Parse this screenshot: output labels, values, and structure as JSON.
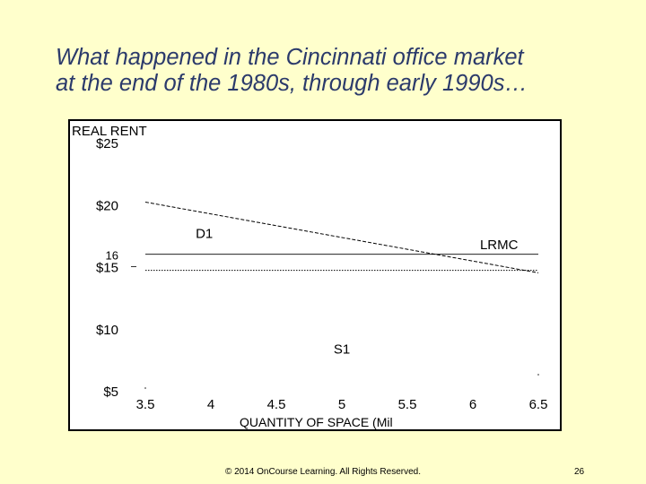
{
  "slide": {
    "title_line1": "What happened in the Cincinnati office market",
    "title_line2": "at the end of the 1980s, through early 1990s…",
    "footer": "© 2014 OnCourse Learning. All Rights Reserved.",
    "page_number": "26",
    "background_color": "#ffffcc",
    "title_color": "#2b3a6b"
  },
  "chart_data": {
    "type": "line",
    "ylabel": "REAL RENT",
    "xlabel": "QUANTITY OF SPACE (Mil",
    "xlim": [
      3.5,
      6.5
    ],
    "ylim": [
      5,
      25
    ],
    "x_ticks": [
      "3.5",
      "4",
      "4.5",
      "5",
      "5.5",
      "6",
      "6.5"
    ],
    "y_ticks": [
      "$25",
      "$20",
      "$15",
      "$10",
      "$5"
    ],
    "y_tick_values": [
      25,
      20,
      15,
      10,
      5
    ],
    "extra_y_label": {
      "text": "16",
      "value": 16
    },
    "grid": false,
    "series": [
      {
        "name": "D1",
        "style": "dashed",
        "x": [
          3.5,
          6.5
        ],
        "y": [
          20.2,
          14.5
        ]
      },
      {
        "name": "LRMC",
        "style": "solid",
        "x": [
          3.5,
          6.5
        ],
        "y": [
          16.0,
          16.0
        ]
      },
      {
        "name": "",
        "style": "dotted",
        "x": [
          3.5,
          6.5
        ],
        "y": [
          14.7,
          14.7
        ]
      }
    ],
    "annotations": [
      {
        "text": "D1",
        "x": 3.95,
        "y": 17.3
      },
      {
        "text": "LRMC",
        "x": 6.2,
        "y": 16.4
      },
      {
        "text": "S1",
        "x": 5.0,
        "y": 8.0
      }
    ]
  }
}
